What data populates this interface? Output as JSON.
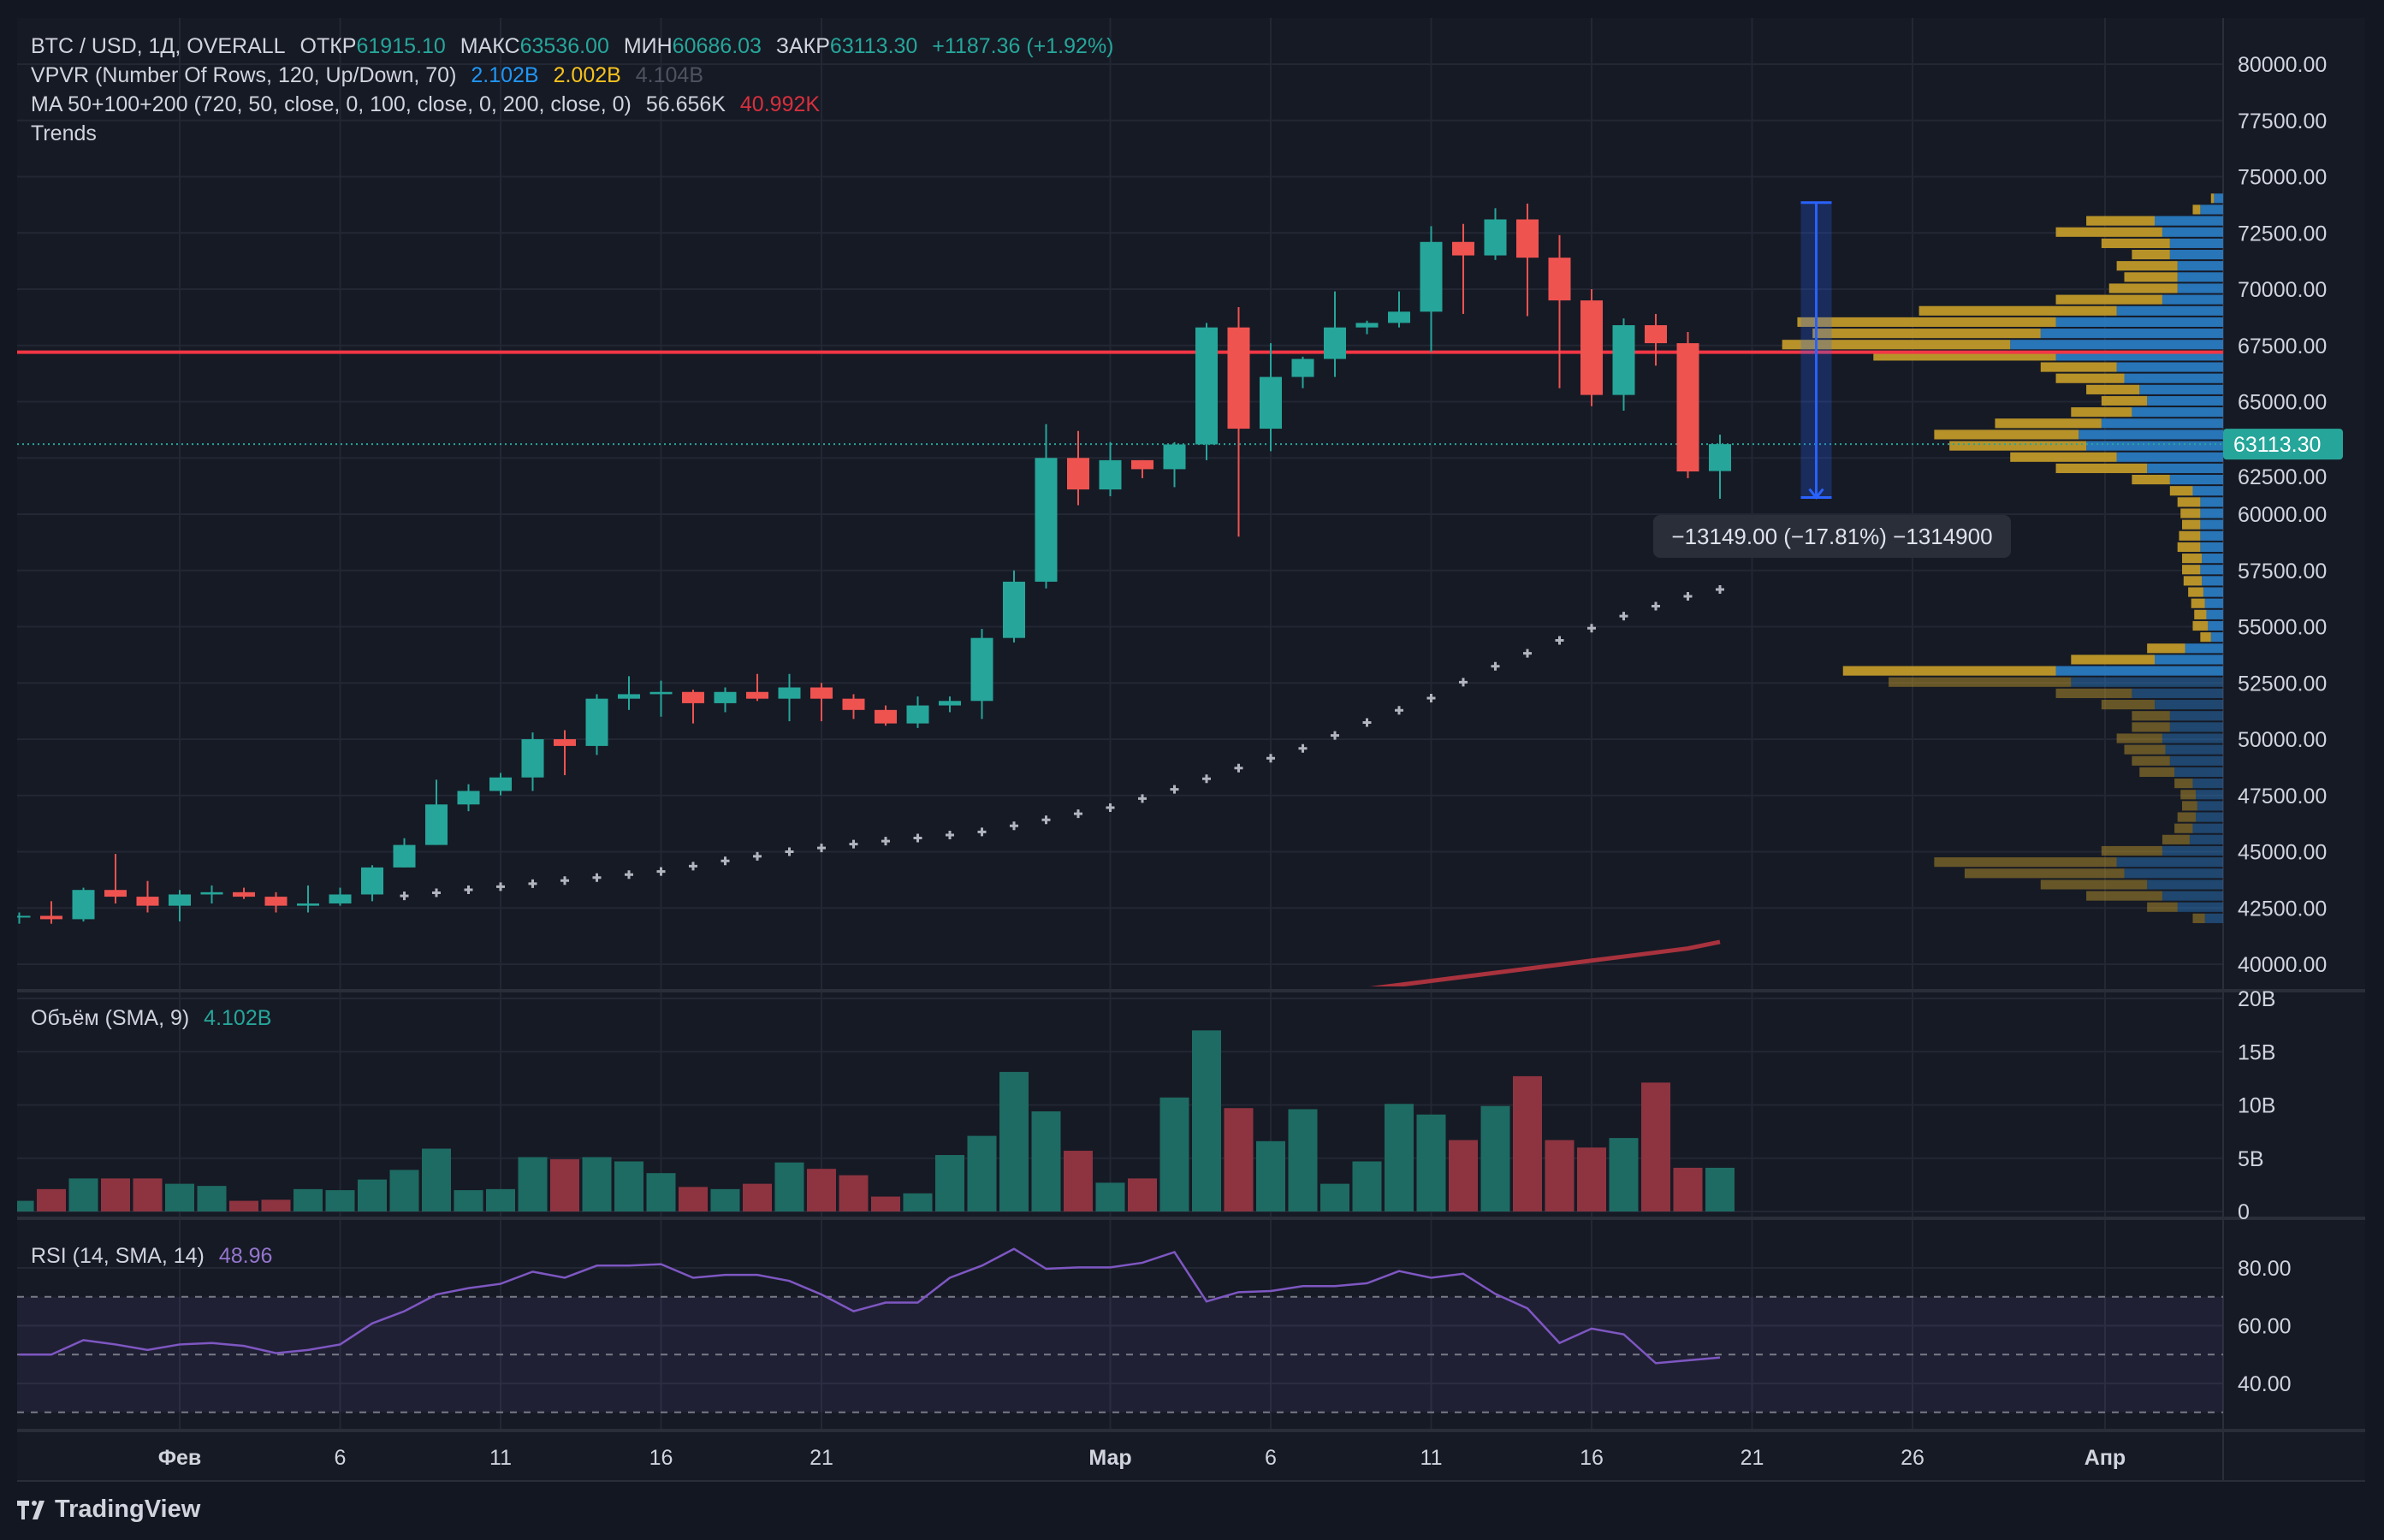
{
  "header": {
    "symbol": "BTC / USD, 1Д, OVERALL",
    "open_label": "ОТКР",
    "open": "61915.10",
    "high_label": "МАКС",
    "high": "63536.00",
    "low_label": "МИН",
    "low": "60686.03",
    "close_label": "ЗАКР",
    "close": "63113.30",
    "change": "+1187.36 (+1.92%)"
  },
  "indicators": {
    "vpvr": {
      "label": "VPVR (Number Of Rows, 120, Up/Down, 70)",
      "up": "2.102B",
      "down": "2.002B",
      "total": "4.104B"
    },
    "ma": {
      "label": "MA 50+100+200 (720, 50, close, 0, 100, close, 0, 200, close, 0)",
      "v1": "56.656K",
      "v2": "40.992K"
    },
    "trends": {
      "label": "Trends"
    },
    "volume": {
      "label": "Объём (SMA, 9)",
      "value": "4.102B"
    },
    "rsi": {
      "label": "RSI (14, SMA, 14)",
      "value": "48.96"
    }
  },
  "colors": {
    "up": "#26a69a",
    "down": "#ef5350",
    "vol_up": "#1e6b63",
    "vol_down": "#8e3440",
    "vpvr_up": "#2a7fc9",
    "vpvr_down": "#c9a02a",
    "trend_line": "#f23645",
    "ma_dots": "#b2b5be",
    "ma_long": "#a8323d",
    "rsi": "#7e57c2",
    "background": "#131722"
  },
  "measure": {
    "text": "−13149.00 (−17.81%) −1314900",
    "from": 73850,
    "to": 60740,
    "date": "03-23"
  },
  "last_price_label": "63113.30",
  "trend_line_price": 67200,
  "chart_data": {
    "type": "candlestick",
    "price_axis": {
      "ticks": [
        "80000.00",
        "77500.00",
        "75000.00",
        "72500.00",
        "70000.00",
        "67500.00",
        "65000.00",
        "62500.00",
        "60000.00",
        "57500.00",
        "55000.00",
        "52500.00",
        "50000.00",
        "47500.00",
        "45000.00",
        "42500.00",
        "40000.00"
      ],
      "range": [
        40000,
        80000
      ]
    },
    "volume_axis": {
      "ticks": [
        "20B",
        "15B",
        "10B",
        "5B",
        "0"
      ],
      "range": [
        0,
        20
      ]
    },
    "rsi_axis": {
      "ticks": [
        "80.00",
        "60.00",
        "40.00"
      ],
      "bands": [
        70,
        50,
        30
      ]
    },
    "time_axis": [
      {
        "label": "Фев",
        "date": "02-01"
      },
      {
        "label": "6",
        "date": "02-06"
      },
      {
        "label": "11",
        "date": "02-11"
      },
      {
        "label": "16",
        "date": "02-16"
      },
      {
        "label": "21",
        "date": "02-21"
      },
      {
        "label": "Мар",
        "date": "03-01"
      },
      {
        "label": "6",
        "date": "03-06"
      },
      {
        "label": "11",
        "date": "03-11"
      },
      {
        "label": "16",
        "date": "03-16"
      },
      {
        "label": "21",
        "date": "03-21"
      },
      {
        "label": "26",
        "date": "03-26"
      },
      {
        "label": "Апр",
        "date": "04-01"
      }
    ],
    "start_date": "01-27",
    "ohlc": [
      [
        42100,
        42300,
        41800,
        42150
      ],
      [
        42150,
        42800,
        41800,
        42000
      ],
      [
        42000,
        43400,
        41900,
        43300
      ],
      [
        43300,
        44900,
        42700,
        43000
      ],
      [
        43000,
        43700,
        42300,
        42600
      ],
      [
        42600,
        43300,
        41900,
        43100
      ],
      [
        43100,
        43500,
        42700,
        43200
      ],
      [
        43200,
        43400,
        42900,
        43000
      ],
      [
        43000,
        43200,
        42300,
        42600
      ],
      [
        42600,
        43500,
        42300,
        42700
      ],
      [
        42700,
        43400,
        42600,
        43100
      ],
      [
        43100,
        44400,
        42800,
        44300
      ],
      [
        44300,
        45600,
        44300,
        45300
      ],
      [
        45300,
        48200,
        45300,
        47100
      ],
      [
        47100,
        48000,
        46800,
        47700
      ],
      [
        47700,
        48500,
        47500,
        48300
      ],
      [
        48300,
        50300,
        47700,
        50000
      ],
      [
        50000,
        50400,
        48400,
        49700
      ],
      [
        49700,
        52000,
        49300,
        51800
      ],
      [
        51800,
        52800,
        51300,
        52000
      ],
      [
        52000,
        52600,
        51000,
        52100
      ],
      [
        52100,
        52200,
        50700,
        51600
      ],
      [
        51600,
        52300,
        51200,
        52100
      ],
      [
        52100,
        52900,
        51700,
        51800
      ],
      [
        51800,
        52900,
        50800,
        52300
      ],
      [
        52300,
        52500,
        50800,
        51800
      ],
      [
        51800,
        52000,
        50900,
        51300
      ],
      [
        51300,
        51500,
        50600,
        50700
      ],
      [
        50700,
        51900,
        50500,
        51500
      ],
      [
        51500,
        51900,
        51200,
        51700
      ],
      [
        51700,
        54900,
        50900,
        54500
      ],
      [
        54500,
        57500,
        54300,
        57000
      ],
      [
        57000,
        64000,
        56700,
        62500
      ],
      [
        62500,
        63700,
        60400,
        61100
      ],
      [
        61100,
        63200,
        60800,
        62400
      ],
      [
        62400,
        62400,
        61600,
        62000
      ],
      [
        62000,
        63200,
        61200,
        63100
      ],
      [
        63100,
        68500,
        62400,
        68300
      ],
      [
        68300,
        69200,
        59000,
        63800
      ],
      [
        63800,
        67600,
        62800,
        66100
      ],
      [
        66100,
        67000,
        65600,
        66900
      ],
      [
        66900,
        69900,
        66100,
        68300
      ],
      [
        68300,
        68600,
        68000,
        68500
      ],
      [
        68500,
        69900,
        68300,
        69000
      ],
      [
        69000,
        72800,
        67200,
        72100
      ],
      [
        72100,
        72900,
        68900,
        71500
      ],
      [
        71500,
        73600,
        71300,
        73100
      ],
      [
        73100,
        73800,
        68800,
        71400
      ],
      [
        71400,
        72400,
        65600,
        69500
      ],
      [
        69500,
        70000,
        64800,
        65300
      ],
      [
        65300,
        68700,
        64600,
        68400
      ],
      [
        68400,
        68900,
        66600,
        67600
      ],
      [
        67600,
        68100,
        61600,
        61900
      ],
      [
        61915.1,
        63536,
        60686.03,
        63113.3
      ]
    ],
    "volume_b": [
      1.0,
      2.1,
      3.1,
      3.1,
      3.1,
      2.6,
      2.4,
      1.0,
      1.1,
      2.1,
      2.0,
      3.0,
      3.9,
      5.9,
      2.0,
      2.1,
      5.1,
      4.9,
      5.1,
      4.7,
      3.6,
      2.3,
      2.1,
      2.6,
      4.6,
      4.0,
      3.4,
      1.4,
      1.7,
      5.3,
      7.1,
      13.1,
      9.4,
      5.7,
      2.7,
      3.1,
      10.7,
      17.0,
      9.7,
      6.6,
      9.6,
      2.6,
      4.7,
      10.1,
      9.1,
      6.7,
      9.9,
      12.7,
      6.7,
      6.0,
      6.9,
      12.1,
      4.102,
      4.1
    ],
    "rsi": [
      50,
      50,
      55,
      53.5,
      51.6,
      53.5,
      54,
      53,
      50.5,
      51.6,
      53.5,
      60.8,
      65,
      70.8,
      73,
      74.5,
      78.7,
      76.6,
      80.8,
      80.8,
      81.3,
      76.6,
      77.6,
      77.6,
      75.5,
      70.8,
      65,
      68,
      68,
      76.6,
      80.8,
      86.6,
      79.7,
      80.2,
      80.2,
      81.8,
      85.5,
      68.4,
      71.6,
      72,
      73.7,
      73.7,
      74.7,
      78.9,
      76.6,
      78,
      71,
      66,
      54,
      59,
      57,
      47,
      48,
      48.96
    ],
    "ma_short": {
      "start_date": "02-08",
      "values": [
        43039,
        43174,
        43309,
        43445,
        43580,
        43715,
        43850,
        43985,
        44120,
        44357,
        44593,
        44796,
        44999,
        45168,
        45337,
        45472,
        45607,
        45742,
        45877,
        46148,
        46418,
        46688,
        46958,
        47364,
        47769,
        48242,
        48715,
        49154,
        49593,
        50168,
        50742,
        51283,
        51823,
        52533,
        53242,
        53817,
        54391,
        54932,
        55472,
        55911,
        56350,
        56656
      ]
    },
    "ma_long": {
      "start_date": "03-09",
      "values": [
        38900,
        39080,
        39260,
        39440,
        39620,
        39800,
        39980,
        40160,
        40340,
        40520,
        40700,
        40992
      ]
    },
    "vpvr": {
      "row_step": 500,
      "visible_range_low": 52750,
      "rows": [
        [
          74000,
          6,
          2
        ],
        [
          73500,
          15,
          5
        ],
        [
          73000,
          45,
          45
        ],
        [
          72500,
          40,
          70
        ],
        [
          72000,
          35,
          45
        ],
        [
          71500,
          35,
          25
        ],
        [
          71000,
          30,
          40
        ],
        [
          70500,
          30,
          35
        ],
        [
          70000,
          30,
          45
        ],
        [
          69500,
          40,
          70
        ],
        [
          69000,
          70,
          130
        ],
        [
          68500,
          110,
          170
        ],
        [
          68000,
          120,
          150
        ],
        [
          67500,
          140,
          150
        ],
        [
          67000,
          110,
          120
        ],
        [
          66500,
          70,
          50
        ],
        [
          66000,
          65,
          45
        ],
        [
          65500,
          55,
          35
        ],
        [
          65000,
          50,
          30
        ],
        [
          64500,
          60,
          40
        ],
        [
          64000,
          80,
          70
        ],
        [
          63500,
          95,
          95
        ],
        [
          63000,
          90,
          90
        ],
        [
          62500,
          70,
          70
        ],
        [
          62000,
          50,
          60
        ],
        [
          61500,
          35,
          25
        ],
        [
          61000,
          20,
          15
        ],
        [
          60500,
          15,
          15
        ],
        [
          60000,
          15,
          13
        ],
        [
          59500,
          15,
          12
        ],
        [
          59000,
          15,
          14
        ],
        [
          58500,
          15,
          15
        ],
        [
          58000,
          14,
          13
        ],
        [
          57500,
          15,
          12
        ],
        [
          57000,
          14,
          12
        ],
        [
          56500,
          13,
          10
        ],
        [
          56000,
          12,
          9
        ],
        [
          55500,
          11,
          8
        ],
        [
          55000,
          10,
          10
        ],
        [
          54500,
          8,
          7
        ],
        [
          54000,
          25,
          25
        ],
        [
          53500,
          45,
          55
        ],
        [
          53000,
          110,
          140
        ],
        [
          52500,
          100,
          120
        ],
        [
          52000,
          60,
          50
        ],
        [
          51500,
          45,
          35
        ],
        [
          51000,
          35,
          25
        ],
        [
          50500,
          35,
          25
        ],
        [
          50000,
          40,
          30
        ],
        [
          49500,
          38,
          27
        ],
        [
          49000,
          35,
          25
        ],
        [
          48500,
          32,
          23
        ],
        [
          48000,
          20,
          12
        ],
        [
          47500,
          18,
          10
        ],
        [
          47000,
          17,
          10
        ],
        [
          46500,
          18,
          12
        ],
        [
          46000,
          20,
          12
        ],
        [
          45500,
          22,
          18
        ],
        [
          45000,
          40,
          40
        ],
        [
          44500,
          70,
          120
        ],
        [
          44000,
          65,
          105
        ],
        [
          43500,
          50,
          70
        ],
        [
          43000,
          40,
          50
        ],
        [
          42500,
          30,
          20
        ],
        [
          42000,
          12,
          8
        ]
      ]
    }
  },
  "branding": {
    "logo_text": "TradingView"
  }
}
